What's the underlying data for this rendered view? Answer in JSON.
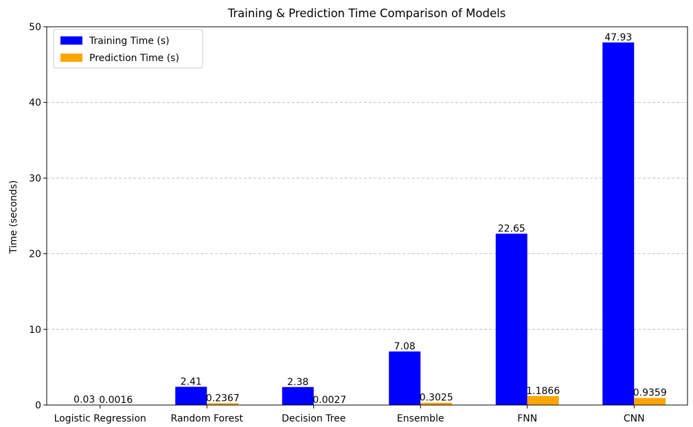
{
  "chart_data": {
    "type": "bar",
    "title": "Training & Prediction Time Comparison of Models",
    "xlabel": "",
    "ylabel": "Time (seconds)",
    "ylim": [
      0,
      50
    ],
    "yticks": [
      0,
      10,
      20,
      30,
      40,
      50
    ],
    "grid": "y-dashed",
    "legend_position": "top-left",
    "categories": [
      "Logistic Regression",
      "Random Forest",
      "Decision Tree",
      "Ensemble",
      "FNN",
      "CNN"
    ],
    "series": [
      {
        "name": "Training Time (s)",
        "color": "#0000ff",
        "values": [
          0.03,
          2.41,
          2.38,
          7.08,
          22.65,
          47.93
        ],
        "labels": [
          "0.03",
          "2.41",
          "2.38",
          "7.08",
          "22.65",
          "47.93"
        ]
      },
      {
        "name": "Prediction Time (s)",
        "color": "#ffa500",
        "values": [
          0.0016,
          0.2367,
          0.0027,
          0.3025,
          1.1866,
          0.9359
        ],
        "labels": [
          "0.0016",
          "0.2367",
          "0.0027",
          "0.3025",
          "1.1866",
          "0.9359"
        ]
      }
    ]
  }
}
